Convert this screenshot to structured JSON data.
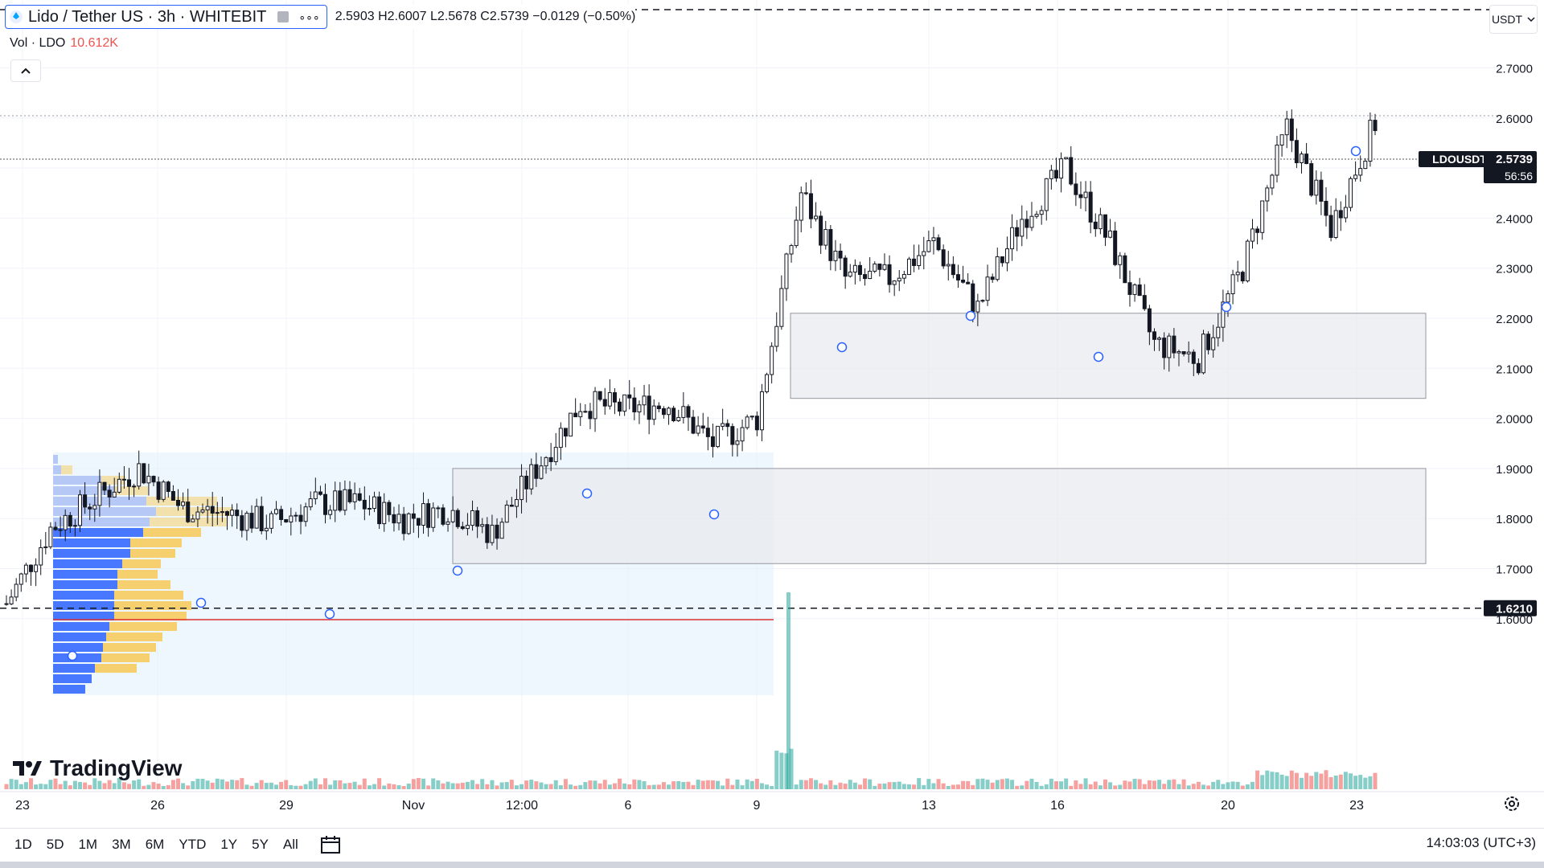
{
  "legend": {
    "symbol": "Lido / Tether US · 3h · WHITEBIT",
    "more": "∘∘∘",
    "ohlc": [
      {
        "k": "",
        "v": "2.5903"
      },
      {
        "k": "H",
        "v": "2.6007"
      },
      {
        "k": "L",
        "v": "2.5678"
      },
      {
        "k": "C",
        "v": "2.5739"
      },
      {
        "k": "",
        "v": "−0.0129 (−0.50%)"
      }
    ],
    "vol_label": "Vol · LDO",
    "vol_value": "10.612K"
  },
  "currency": "USDT",
  "price_axis": {
    "ticks": [
      "2.7000",
      "2.6000",
      "2.5000",
      "2.4000",
      "2.3000",
      "2.2000",
      "2.1000",
      "2.0000",
      "1.9000",
      "1.8000",
      "1.7000",
      "1.6000"
    ],
    "last_symbol": "LDOUSDT",
    "last_price": "2.5739",
    "countdown": "56:56",
    "line_label": "1.6210"
  },
  "time_axis": [
    "23",
    "26",
    "29",
    "Nov",
    "12:00",
    "6",
    "9",
    "13",
    "16",
    "20",
    "23"
  ],
  "logo": "TradingView",
  "ranges": [
    "1D",
    "5D",
    "1M",
    "3M",
    "6M",
    "YTD",
    "1Y",
    "5Y",
    "All"
  ],
  "clock": "14:03:03 (UTC+3)",
  "colors": {
    "up": "#26a69a",
    "down": "#ef5350",
    "line": "#131722",
    "zone": "#e8e9ee",
    "vp_up": "#2962ff",
    "vp_down": "#f7c64a"
  },
  "chart_data": {
    "type": "candlestick",
    "symbol": "LDOUSDT",
    "interval": "3h",
    "ylim": [
      1.6,
      2.7
    ],
    "close_path": [
      {
        "x": "Oct 23",
        "y": 1.63
      },
      {
        "x": "Oct 24",
        "y": 1.78
      },
      {
        "x": "Oct 25",
        "y": 1.84
      },
      {
        "x": "Oct 26",
        "y": 1.9
      },
      {
        "x": "Oct 27",
        "y": 1.82
      },
      {
        "x": "Oct 28",
        "y": 1.81
      },
      {
        "x": "Oct 29",
        "y": 1.79
      },
      {
        "x": "Oct 30",
        "y": 1.83
      },
      {
        "x": "Oct 31",
        "y": 1.83
      },
      {
        "x": "Nov 1",
        "y": 1.8
      },
      {
        "x": "Nov 2",
        "y": 1.82
      },
      {
        "x": "Nov 3",
        "y": 1.77
      },
      {
        "x": "Nov 4",
        "y": 1.9
      },
      {
        "x": "Nov 5",
        "y": 2.03
      },
      {
        "x": "Nov 6",
        "y": 2.02
      },
      {
        "x": "Nov 7",
        "y": 2.03
      },
      {
        "x": "Nov 8",
        "y": 1.95
      },
      {
        "x": "Nov 9",
        "y": 2.0
      },
      {
        "x": "Nov 10",
        "y": 2.45
      },
      {
        "x": "Nov 11",
        "y": 2.28
      },
      {
        "x": "Nov 12",
        "y": 2.28
      },
      {
        "x": "Nov 13",
        "y": 2.35
      },
      {
        "x": "Nov 14",
        "y": 2.22
      },
      {
        "x": "Nov 15",
        "y": 2.4
      },
      {
        "x": "Nov 16",
        "y": 2.5
      },
      {
        "x": "Nov 17",
        "y": 2.35
      },
      {
        "x": "Nov 18",
        "y": 2.15
      },
      {
        "x": "Nov 19",
        "y": 2.12
      },
      {
        "x": "Nov 20",
        "y": 2.3
      },
      {
        "x": "Nov 21",
        "y": 2.58
      },
      {
        "x": "Nov 22",
        "y": 2.38
      },
      {
        "x": "Nov 23",
        "y": 2.59
      }
    ],
    "horizontal_lines": [
      1.621,
      2.65
    ],
    "zones": [
      {
        "low": 2.04,
        "high": 2.21
      },
      {
        "low": 1.71,
        "high": 1.9
      }
    ],
    "last_close": 2.5739
  }
}
